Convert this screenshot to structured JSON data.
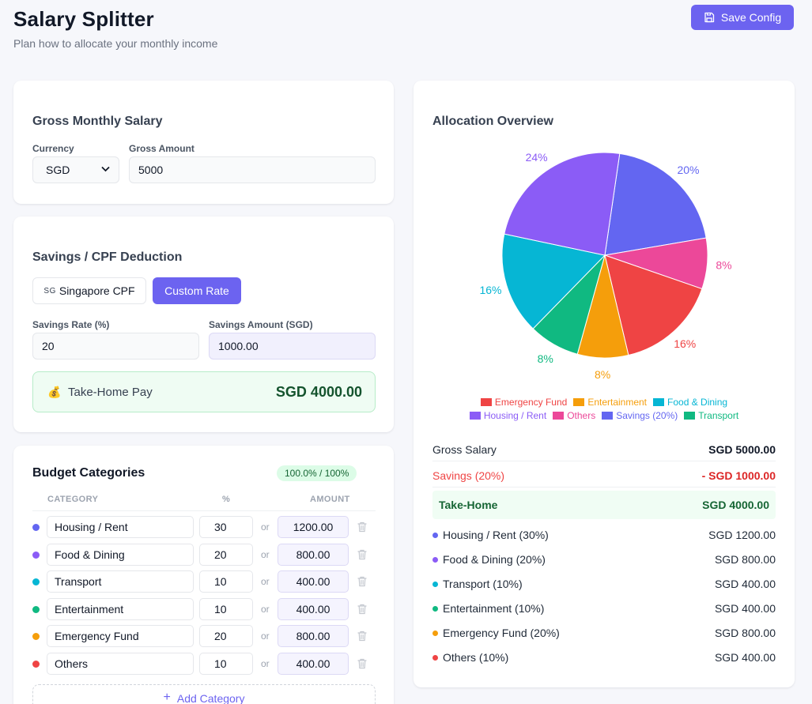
{
  "header": {
    "title": "Salary Splitter",
    "subtitle": "Plan how to allocate your monthly income",
    "save_label": "Save Config"
  },
  "salary": {
    "title": "Gross Monthly Salary",
    "currency_label": "Currency",
    "currency_value": "SGD",
    "amount_label": "Gross Amount",
    "amount_value": "5000"
  },
  "savings": {
    "title": "Savings / CPF Deduction",
    "cpf_flag": "SG",
    "cpf_label": "Singapore CPF",
    "custom_label": "Custom Rate",
    "rate_label": "Savings Rate (%)",
    "rate_value": "20",
    "amount_label": "Savings Amount (SGD)",
    "amount_value": "1000.00",
    "takehome_label": "Take-Home Pay",
    "takehome_value": "SGD 4000.00"
  },
  "budget": {
    "title": "Budget Categories",
    "badge": "100.0% / 100%",
    "col_category": "CATEGORY",
    "col_pct": "%",
    "col_amount": "AMOUNT",
    "or_text": "or",
    "add_label": "Add Category",
    "rows": [
      {
        "name": "Housing / Rent",
        "pct": "30",
        "amount": "1200.00",
        "color": "#6366f1"
      },
      {
        "name": "Food & Dining",
        "pct": "20",
        "amount": "800.00",
        "color": "#8b5cf6"
      },
      {
        "name": "Transport",
        "pct": "10",
        "amount": "400.00",
        "color": "#06b6d4"
      },
      {
        "name": "Entertainment",
        "pct": "10",
        "amount": "400.00",
        "color": "#10b981"
      },
      {
        "name": "Emergency Fund",
        "pct": "20",
        "amount": "800.00",
        "color": "#f59e0b"
      },
      {
        "name": "Others",
        "pct": "10",
        "amount": "400.00",
        "color": "#ef4444"
      }
    ]
  },
  "overview": {
    "title": "Allocation Overview",
    "gross_label": "Gross Salary",
    "gross_value": "SGD 5000.00",
    "savings_label": "Savings (20%)",
    "savings_value": "- SGD 1000.00",
    "takehome_label": "Take-Home",
    "takehome_value": "SGD 4000.00",
    "alloc": [
      {
        "label": "Housing / Rent (30%)",
        "value": "SGD 1200.00",
        "color": "#6366f1"
      },
      {
        "label": "Food & Dining (20%)",
        "value": "SGD 800.00",
        "color": "#8b5cf6"
      },
      {
        "label": "Transport (10%)",
        "value": "SGD 400.00",
        "color": "#06b6d4"
      },
      {
        "label": "Entertainment (10%)",
        "value": "SGD 400.00",
        "color": "#10b981"
      },
      {
        "label": "Emergency Fund (20%)",
        "value": "SGD 800.00",
        "color": "#f59e0b"
      },
      {
        "label": "Others (10%)",
        "value": "SGD 400.00",
        "color": "#ef4444"
      }
    ]
  },
  "chart_data": {
    "type": "pie",
    "legend_position": "bottom",
    "slices": [
      {
        "name": "Savings (20%)",
        "value": 20,
        "label": "20%",
        "color": "#6366f1"
      },
      {
        "name": "Others",
        "value": 8,
        "label": "8%",
        "color": "#ec4899"
      },
      {
        "name": "Emergency Fund",
        "value": 16,
        "label": "16%",
        "color": "#ef4444"
      },
      {
        "name": "Entertainment",
        "value": 8,
        "label": "8%",
        "color": "#f59e0b"
      },
      {
        "name": "Transport",
        "value": 8,
        "label": "8%",
        "color": "#10b981"
      },
      {
        "name": "Food & Dining",
        "value": 16,
        "label": "16%",
        "color": "#06b6d4"
      },
      {
        "name": "Housing / Rent",
        "value": 24,
        "label": "24%",
        "color": "#8b5cf6"
      }
    ],
    "legend": [
      {
        "name": "Emergency Fund",
        "color": "#ef4444"
      },
      {
        "name": "Entertainment",
        "color": "#f59e0b"
      },
      {
        "name": "Food & Dining",
        "color": "#06b6d4"
      },
      {
        "name": "Housing / Rent",
        "color": "#8b5cf6"
      },
      {
        "name": "Others",
        "color": "#ec4899"
      },
      {
        "name": "Savings (20%)",
        "color": "#6366f1"
      },
      {
        "name": "Transport",
        "color": "#10b981"
      }
    ]
  }
}
